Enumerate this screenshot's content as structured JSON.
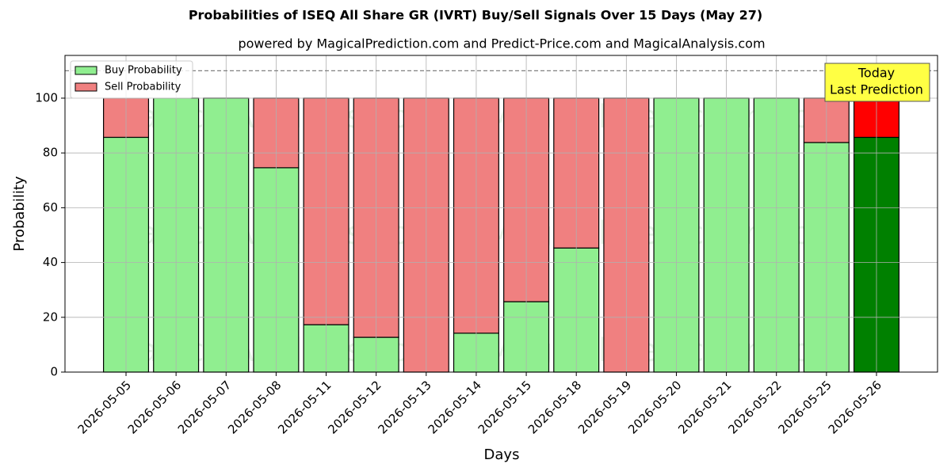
{
  "chart_data": {
    "type": "stacked_bar",
    "title": "Probabilities of ISEQ All Share GR (IVRT) Buy/Sell Signals Over 15 Days (May 27)",
    "subtitle": "powered by MagicalPrediction.com and Predict-Price.com and MagicalAnalysis.com",
    "x_label": "Days",
    "y_label": "Probability",
    "categories": [
      "2026-05-05",
      "2026-05-06",
      "2026-05-07",
      "2026-05-08",
      "2026-05-11",
      "2026-05-12",
      "2026-05-13",
      "2026-05-14",
      "2026-05-15",
      "2026-05-18",
      "2026-05-19",
      "2026-05-20",
      "2026-05-21",
      "2026-05-22",
      "2026-05-25",
      "2026-05-26"
    ],
    "series": [
      {
        "name": "Buy Probability",
        "color": "#90ee90",
        "highlight_color": "#008000",
        "values": [
          85.7,
          100,
          100,
          74.6,
          17.3,
          12.7,
          0,
          14.2,
          25.7,
          45.3,
          0,
          100,
          100,
          100,
          83.8,
          85.7
        ]
      },
      {
        "name": "Sell Probability",
        "color": "#f08080",
        "highlight_color": "#ff0000",
        "values": [
          14.3,
          0,
          0,
          25.4,
          82.7,
          87.3,
          100,
          85.8,
          74.3,
          54.7,
          100,
          0,
          0,
          0,
          16.2,
          14.3
        ]
      }
    ],
    "ylim": [
      0,
      115.6
    ],
    "yticks": [
      0,
      20,
      40,
      60,
      80,
      100
    ],
    "grid": true,
    "legend": "upper left",
    "hline": 110,
    "annotation": [
      "Today",
      "Last Prediction"
    ],
    "watermarks": [
      "MagicalAnalysis.com",
      "MagicalPrediction.com"
    ]
  }
}
